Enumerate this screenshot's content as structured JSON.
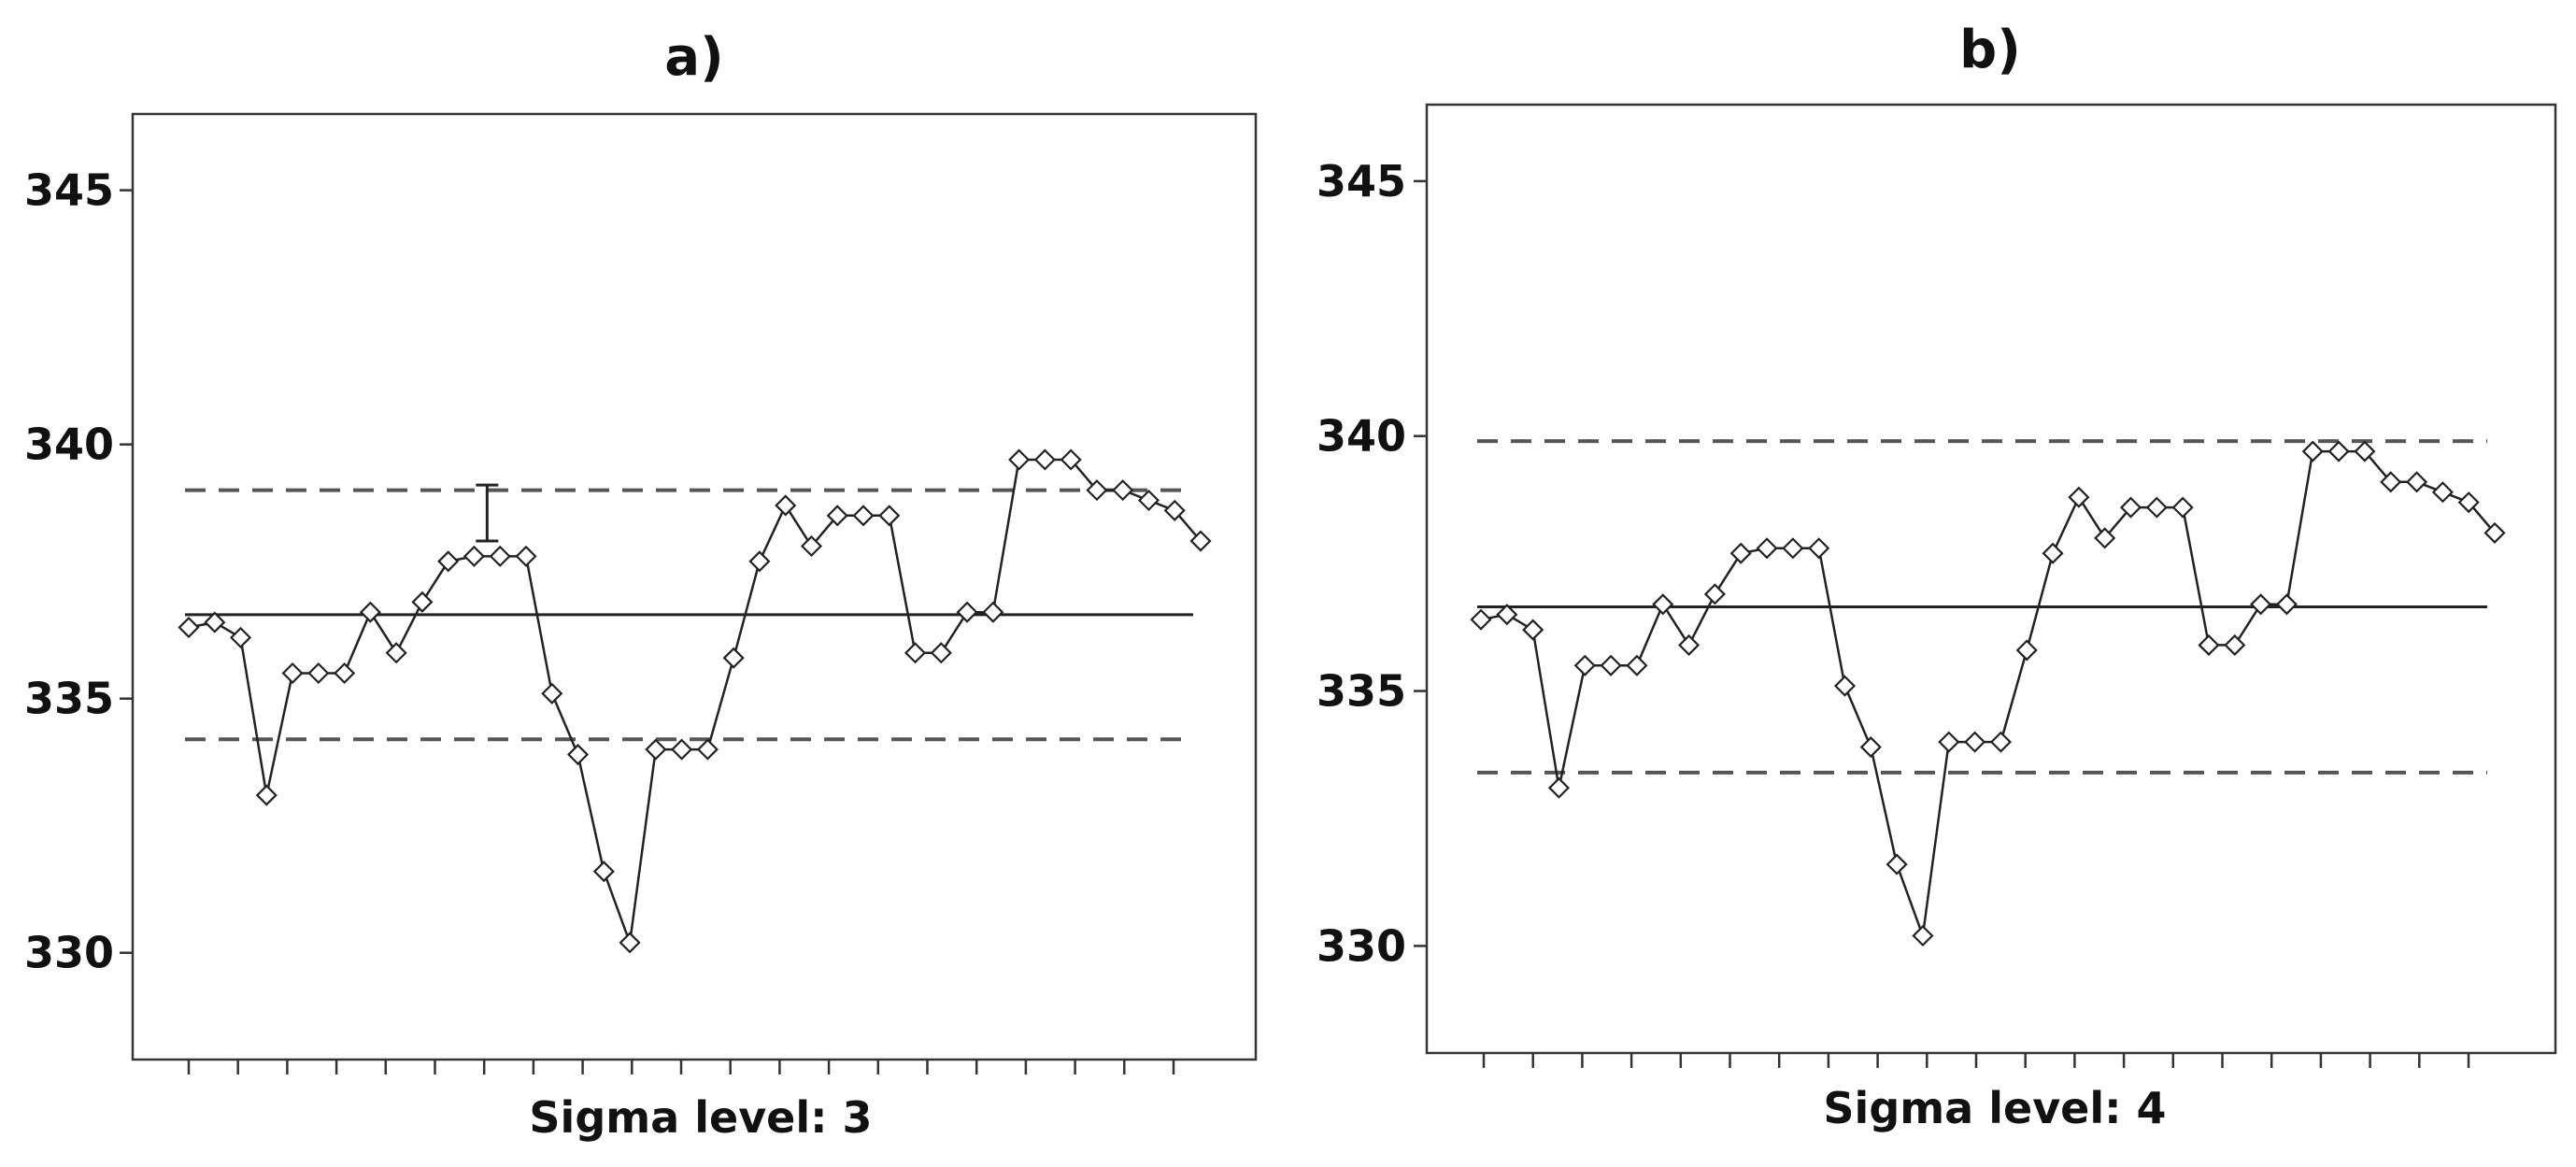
{
  "chart_data": [
    {
      "type": "line",
      "title": "a)",
      "xlabel": "Sigma level: 3",
      "ylabel": "",
      "ylim": [
        327.9,
        346.5
      ],
      "yticks": [
        330,
        335,
        340,
        345
      ],
      "x_tick_count": 21,
      "values": [
        336.4,
        336.5,
        336.2,
        333.1,
        335.5,
        335.5,
        335.5,
        336.7,
        335.9,
        336.9,
        337.7,
        337.8,
        337.8,
        337.8,
        335.1,
        333.9,
        331.6,
        330.2,
        334.0,
        334.0,
        334.0,
        335.8,
        337.7,
        338.8,
        338.0,
        338.6,
        338.6,
        338.6,
        335.9,
        335.9,
        336.7,
        336.7,
        339.7,
        339.7,
        339.7,
        339.1,
        339.1,
        338.9,
        338.7,
        338.1
      ],
      "center_line": 336.65,
      "upper_limit": 339.1,
      "lower_limit": 334.2,
      "annotation": {
        "x_index": 11.5,
        "y_low": 338.1,
        "y_high": 339.2
      },
      "grid": false,
      "legend": "none",
      "colors": {
        "line": "#222222",
        "marker_fill": "#ffffff",
        "dash": "#555555"
      }
    },
    {
      "type": "line",
      "title": "b)",
      "xlabel": "Sigma level: 4",
      "ylabel": "",
      "ylim": [
        327.9,
        346.5
      ],
      "yticks": [
        330,
        335,
        340,
        345
      ],
      "x_tick_count": 21,
      "values": [
        336.4,
        336.5,
        336.2,
        333.1,
        335.5,
        335.5,
        335.5,
        336.7,
        335.9,
        336.9,
        337.7,
        337.8,
        337.8,
        337.8,
        335.1,
        333.9,
        331.6,
        330.2,
        334.0,
        334.0,
        334.0,
        335.8,
        337.7,
        338.8,
        338.0,
        338.6,
        338.6,
        338.6,
        335.9,
        335.9,
        336.7,
        336.7,
        339.7,
        339.7,
        339.7,
        339.1,
        339.1,
        338.9,
        338.7,
        338.1
      ],
      "center_line": 336.65,
      "upper_limit": 339.9,
      "lower_limit": 333.4,
      "annotation": null,
      "grid": false,
      "legend": "none",
      "colors": {
        "line": "#222222",
        "marker_fill": "#ffffff",
        "dash": "#555555"
      }
    }
  ]
}
